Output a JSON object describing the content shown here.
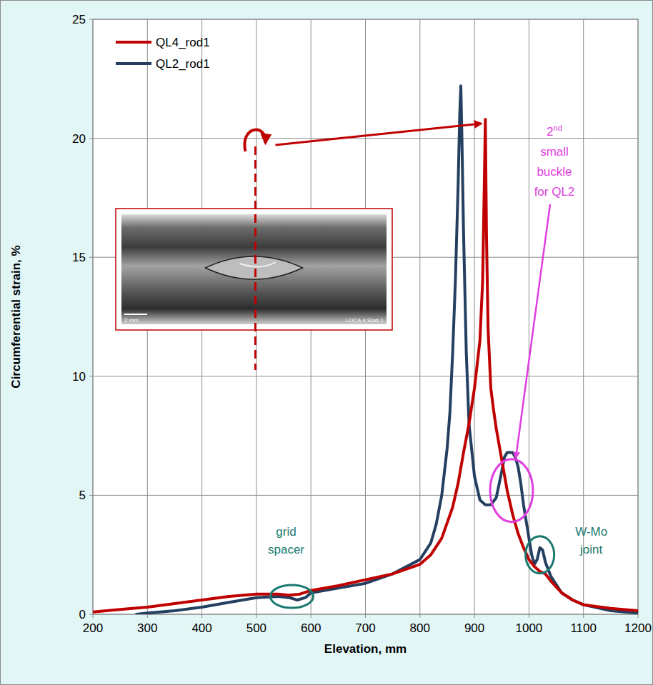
{
  "chart_data": {
    "type": "line",
    "x_label": "Elevation, mm",
    "y_label": "Circumferential strain, %",
    "xlim": [
      200,
      1200
    ],
    "ylim": [
      0,
      25
    ],
    "xticks": [
      200,
      300,
      400,
      500,
      600,
      700,
      800,
      900,
      1000,
      1100,
      1200
    ],
    "yticks": [
      0,
      5,
      10,
      15,
      20,
      25
    ],
    "grid": true,
    "legend": "upper-left",
    "series": [
      {
        "name": "QL4_rod1",
        "color": "#c00000",
        "x": [
          200,
          250,
          300,
          350,
          400,
          450,
          500,
          540,
          560,
          580,
          600,
          650,
          700,
          750,
          800,
          820,
          840,
          860,
          870,
          880,
          890,
          900,
          905,
          910,
          915,
          918,
          920,
          922,
          925,
          930,
          935,
          940,
          950,
          960,
          970,
          980,
          990,
          1000,
          1010,
          1020,
          1030,
          1040,
          1060,
          1080,
          1100,
          1150,
          1200
        ],
        "values": [
          0.1,
          0.2,
          0.3,
          0.45,
          0.6,
          0.75,
          0.85,
          0.85,
          0.8,
          0.85,
          1.0,
          1.2,
          1.45,
          1.7,
          2.1,
          2.5,
          3.2,
          4.5,
          5.5,
          6.8,
          8.0,
          9.5,
          10.5,
          11.5,
          14,
          18,
          20.8,
          16,
          12,
          9.5,
          8.6,
          7.8,
          6.5,
          5.2,
          4.2,
          3.4,
          2.8,
          2.3,
          2.0,
          1.8,
          1.7,
          1.4,
          0.9,
          0.6,
          0.4,
          0.25,
          0.15
        ]
      },
      {
        "name": "QL2_rod1",
        "color": "#243f60",
        "x": [
          280,
          300,
          350,
          400,
          450,
          500,
          540,
          560,
          575,
          590,
          600,
          650,
          700,
          750,
          800,
          820,
          830,
          840,
          850,
          855,
          860,
          865,
          870,
          873,
          875,
          877,
          880,
          885,
          890,
          900,
          910,
          920,
          930,
          940,
          950,
          955,
          960,
          965,
          970,
          975,
          980,
          985,
          990,
          1000,
          1005,
          1010,
          1015,
          1020,
          1025,
          1030,
          1040,
          1060,
          1080,
          1100,
          1150,
          1200
        ],
        "values": [
          0.0,
          0.05,
          0.15,
          0.3,
          0.5,
          0.7,
          0.75,
          0.7,
          0.6,
          0.7,
          0.9,
          1.1,
          1.3,
          1.7,
          2.3,
          3.0,
          3.8,
          5.0,
          7.0,
          8.5,
          11,
          14,
          18,
          21,
          22.2,
          20,
          16,
          11,
          8,
          5.8,
          4.8,
          4.6,
          4.6,
          4.9,
          6.0,
          6.6,
          6.8,
          6.8,
          6.8,
          6.6,
          6.2,
          5.5,
          4.6,
          3.2,
          2.5,
          2.1,
          2.3,
          2.8,
          2.7,
          2.2,
          1.6,
          0.9,
          0.6,
          0.4,
          0.15,
          0.05
        ]
      }
    ],
    "annotations": [
      {
        "text": [
          "grid",
          "spacer"
        ],
        "x": 565,
        "y": 0.75,
        "color": "#1b7a70"
      },
      {
        "text": [
          "W-Mo",
          "joint"
        ],
        "x": 1020,
        "y": 2.5,
        "color": "#1b7a70"
      },
      {
        "text": [
          "2nd",
          "small",
          "buckle",
          "for QL2"
        ],
        "x": 968,
        "y": 5.2,
        "color": "#e03ee0"
      }
    ],
    "inset": {
      "labels": [
        "2 mm",
        "LOCA 4 Stab 1"
      ],
      "color": "#c00000"
    }
  }
}
